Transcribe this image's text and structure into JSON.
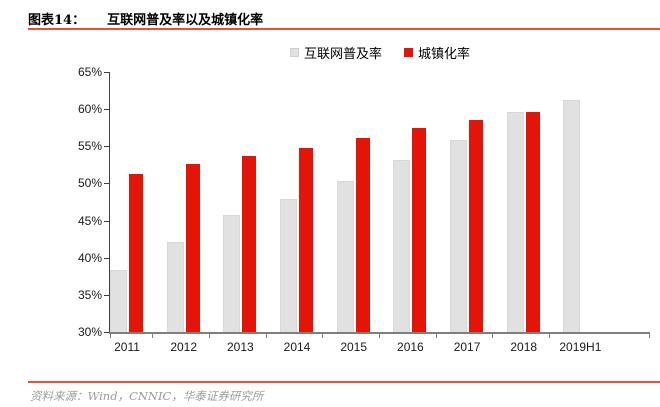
{
  "header": {
    "label": "图表14：",
    "title": "互联网普及率以及城镇化率"
  },
  "chart_data": {
    "type": "bar",
    "title": "互联网普及率以及城镇化率",
    "categories": [
      "2011",
      "2012",
      "2013",
      "2014",
      "2015",
      "2016",
      "2017",
      "2018",
      "2019H1"
    ],
    "series": [
      {
        "name": "互联网普及率",
        "color": "#e1e1e1",
        "values": [
          38.3,
          42.1,
          45.8,
          47.9,
          50.3,
          53.2,
          55.8,
          59.6,
          61.2
        ]
      },
      {
        "name": "城镇化率",
        "color": "#e21508",
        "values": [
          51.3,
          52.6,
          53.7,
          54.8,
          56.1,
          57.4,
          58.5,
          59.6,
          null
        ]
      }
    ],
    "ylim": [
      30,
      65
    ],
    "ytick_step": 5,
    "ytick_suffix": "%",
    "xlabel": "",
    "ylabel": "",
    "grid": false,
    "legend_position": "top-center"
  },
  "footer": {
    "source": "资料来源：Wind，CNNIC，华泰证券研究所"
  },
  "colors": {
    "accent_red": "#e21508",
    "bar_gray": "#e1e1e1",
    "rule_red": "#ee4d36",
    "axis_dark": "#404040",
    "axis_light": "#7f7f7f",
    "footer_text": "#9c9c9c"
  }
}
